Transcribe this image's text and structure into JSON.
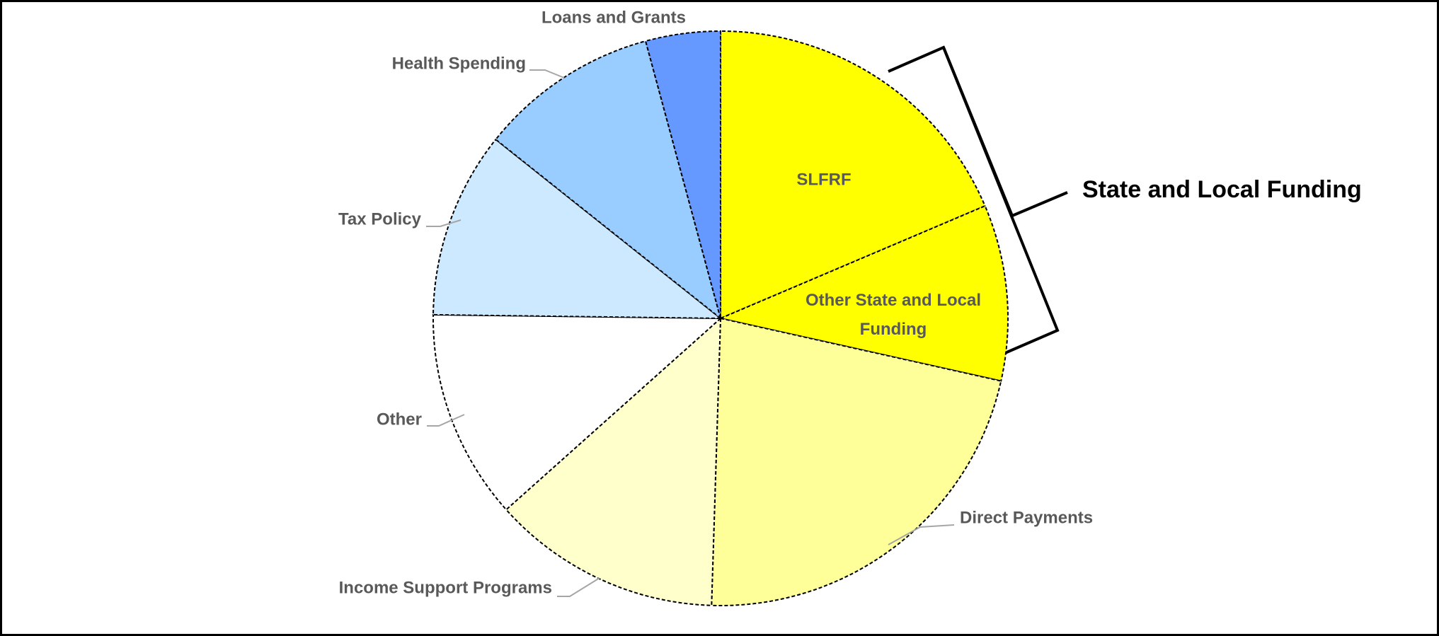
{
  "chart_data": {
    "type": "pie",
    "categories": [
      "SLFRF",
      "Other State and Local Funding",
      "Direct Payments",
      "Income Support Programs",
      "Other",
      "Tax Policy",
      "Health Spending",
      "Loans and Grants"
    ],
    "values": [
      18.6,
      9.9,
      22,
      12.9,
      11.8,
      10.5,
      10.1,
      4.2
    ],
    "colors": [
      "#ffff00",
      "#ffff00",
      "#ffff99",
      "#ffffcc",
      "#ffffff",
      "#cce9ff",
      "#99ccff",
      "#6699ff"
    ],
    "annotations": [
      "State and Local Funding"
    ]
  }
}
